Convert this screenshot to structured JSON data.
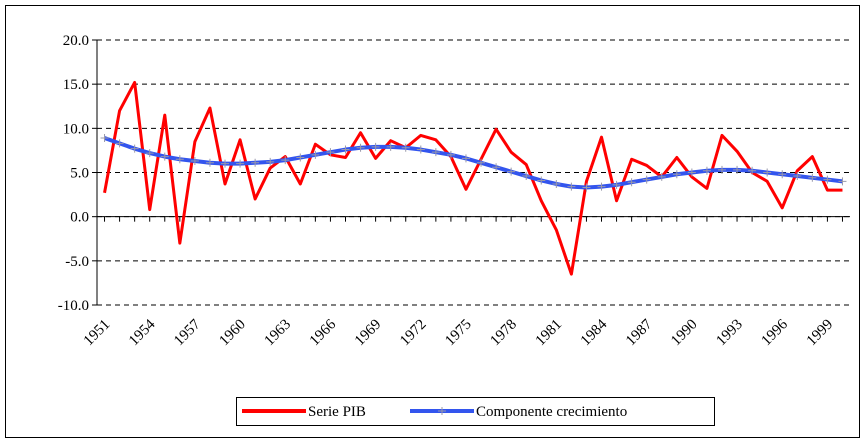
{
  "chart_data": {
    "type": "line",
    "x": [
      1951,
      1952,
      1953,
      1954,
      1955,
      1956,
      1957,
      1958,
      1959,
      1960,
      1961,
      1962,
      1963,
      1964,
      1965,
      1966,
      1967,
      1968,
      1969,
      1970,
      1971,
      1972,
      1973,
      1974,
      1975,
      1976,
      1977,
      1978,
      1979,
      1980,
      1981,
      1982,
      1983,
      1984,
      1985,
      1986,
      1987,
      1988,
      1989,
      1990,
      1991,
      1992,
      1993,
      1994,
      1995,
      1996,
      1997,
      1998,
      1999,
      2000
    ],
    "series": [
      {
        "name": "Serie PIB",
        "color": "#ff0000",
        "values": [
          2.7,
          12,
          15.2,
          0.8,
          11.5,
          -3,
          8.5,
          12.3,
          3.7,
          8.7,
          2,
          5.5,
          6.8,
          3.7,
          8.2,
          7,
          6.7,
          9.5,
          6.6,
          8.6,
          7.8,
          9.2,
          8.7,
          6.8,
          3.1,
          6.5,
          9.9,
          7.3,
          5.9,
          1.8,
          -1.5,
          -6.5,
          4,
          9,
          1.8,
          6.5,
          5.8,
          4.5,
          6.7,
          4.5,
          3.2,
          9.2,
          7.4,
          5,
          4,
          1,
          5.2,
          6.8,
          3,
          3
        ]
      },
      {
        "name": "Componente crecimiento",
        "color": "#3355ee",
        "values": [
          8.9,
          8.3,
          7.7,
          7.2,
          6.8,
          6.5,
          6.3,
          6.1,
          6.0,
          6.0,
          6.1,
          6.2,
          6.4,
          6.7,
          7.0,
          7.3,
          7.6,
          7.8,
          7.9,
          7.9,
          7.8,
          7.6,
          7.3,
          7.0,
          6.6,
          6.1,
          5.6,
          5.1,
          4.6,
          4.1,
          3.7,
          3.4,
          3.3,
          3.4,
          3.6,
          3.9,
          4.2,
          4.5,
          4.8,
          5.0,
          5.2,
          5.3,
          5.3,
          5.2,
          5.0,
          4.8,
          4.6,
          4.4,
          4.2,
          4.0
        ]
      }
    ],
    "xlim": [
      1950.5,
      2000.5
    ],
    "xticks": [
      1951,
      1954,
      1957,
      1960,
      1963,
      1966,
      1969,
      1972,
      1975,
      1978,
      1981,
      1984,
      1987,
      1990,
      1993,
      1996,
      1999
    ],
    "ylim": [
      -10,
      20
    ],
    "yticks": [
      {
        "value": -10,
        "label": "-10.0"
      },
      {
        "value": -5,
        "label": "-5.0"
      },
      {
        "value": 0,
        "label": "0.0"
      },
      {
        "value": 5,
        "label": "5.0"
      },
      {
        "value": 10,
        "label": "10.0"
      },
      {
        "value": 15,
        "label": "15.0"
      },
      {
        "value": 20,
        "label": "20.0"
      }
    ],
    "grid": true,
    "legend": "bottom"
  }
}
